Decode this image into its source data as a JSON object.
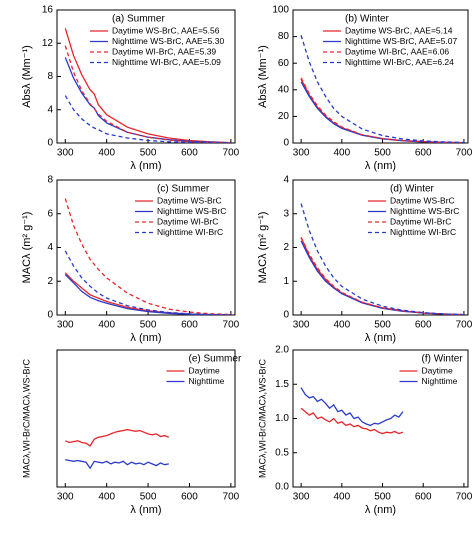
{
  "chart_data": [
    {
      "type": "line",
      "title": "(a) Summer",
      "xlabel": "λ (nm)",
      "ylabel": "Absλ (Mm⁻¹)",
      "x": [
        300,
        320,
        340,
        360,
        370,
        380,
        400,
        450,
        500,
        550,
        600,
        650,
        700
      ],
      "xlim": [
        280,
        710
      ],
      "xticks": [
        300,
        400,
        500,
        600,
        700
      ],
      "ylim": [
        0,
        16
      ],
      "yticks": [
        0,
        4,
        8,
        12,
        16
      ],
      "legend": "upper right",
      "series": [
        {
          "name": "Daytime WS-BrC, AAE=5.56",
          "color": "#e8262a",
          "style": "solid",
          "values": [
            13.8,
            10.5,
            8.2,
            6.4,
            5.9,
            4.6,
            3.4,
            1.9,
            1.1,
            0.6,
            0.3,
            0.15,
            0.05
          ]
        },
        {
          "name": "Nighttime WS-BrC, AAE=5.30",
          "color": "#2a3bcc",
          "style": "solid",
          "values": [
            10.3,
            7.8,
            6.0,
            4.6,
            4.2,
            3.3,
            2.4,
            1.3,
            0.7,
            0.4,
            0.2,
            0.1,
            0.03
          ]
        },
        {
          "name": "Daytime WI-BrC, AAE=5.39",
          "color": "#e8262a",
          "style": "dashed",
          "values": [
            11.7,
            8.5,
            6.3,
            4.7,
            4.1,
            3.5,
            2.6,
            1.3,
            0.7,
            0.35,
            0.15,
            0.05,
            0.02
          ]
        },
        {
          "name": "Nighttime WI-BrC, AAE=5.09",
          "color": "#2a3bcc",
          "style": "dashed",
          "values": [
            5.7,
            4.0,
            2.9,
            2.1,
            1.8,
            1.6,
            1.1,
            0.6,
            0.3,
            0.15,
            0.07,
            0.03,
            0.01
          ]
        }
      ]
    },
    {
      "type": "line",
      "title": "(b) Winter",
      "xlabel": "λ (nm)",
      "ylabel": "Absλ (Mm⁻¹)",
      "x": [
        300,
        320,
        340,
        360,
        380,
        400,
        450,
        500,
        550,
        600,
        650,
        700
      ],
      "xlim": [
        280,
        710
      ],
      "xticks": [
        300,
        400,
        500,
        600,
        700
      ],
      "ylim": [
        0,
        100
      ],
      "yticks": [
        0,
        20,
        40,
        60,
        80,
        100
      ],
      "legend": "upper right",
      "series": [
        {
          "name": "Daytime WS-BrC, AAE=5.14",
          "color": "#e8262a",
          "style": "solid",
          "values": [
            48,
            36,
            27,
            20,
            15,
            11.5,
            6,
            3.3,
            1.8,
            1,
            0.5,
            0.2
          ]
        },
        {
          "name": "Nighttime WS-BrC, AAE=5.07",
          "color": "#2a3bcc",
          "style": "solid",
          "values": [
            46,
            35,
            26,
            19.5,
            14.5,
            11,
            5.8,
            3.1,
            1.7,
            0.9,
            0.45,
            0.2
          ]
        },
        {
          "name": "Daytime WI-BrC, AAE=6.06",
          "color": "#e8262a",
          "style": "dashed",
          "values": [
            49,
            37,
            28,
            21,
            16,
            12,
            6.2,
            3.3,
            1.7,
            0.9,
            0.4,
            0.2
          ]
        },
        {
          "name": "Nighttime WI-BrC, AAE=6.24",
          "color": "#2a3bcc",
          "style": "dashed",
          "values": [
            81,
            61,
            46,
            35,
            26,
            20,
            10.5,
            5.6,
            3,
            1.6,
            0.8,
            0.4
          ]
        }
      ]
    },
    {
      "type": "line",
      "title": "(c) Summer",
      "xlabel": "λ (nm)",
      "ylabel": "MACλ (m² g⁻¹)",
      "x": [
        300,
        320,
        340,
        360,
        380,
        400,
        450,
        500,
        550,
        600,
        650,
        700
      ],
      "xlim": [
        280,
        710
      ],
      "xticks": [
        300,
        400,
        500,
        600,
        700
      ],
      "ylim": [
        0,
        8
      ],
      "yticks": [
        0,
        2,
        4,
        6,
        8
      ],
      "legend": "upper right",
      "series": [
        {
          "name": "Daytime WS-BrC",
          "color": "#e8262a",
          "style": "solid",
          "values": [
            2.5,
            2.0,
            1.6,
            1.2,
            1.0,
            0.8,
            0.45,
            0.25,
            0.13,
            0.06,
            0.03,
            0.01
          ]
        },
        {
          "name": "Nighttime WS-BrC",
          "color": "#2a3bcc",
          "style": "solid",
          "values": [
            2.4,
            1.9,
            1.4,
            1.05,
            0.85,
            0.7,
            0.38,
            0.2,
            0.1,
            0.05,
            0.02,
            0.01
          ]
        },
        {
          "name": "Daytime WI-BrC",
          "color": "#e8262a",
          "style": "dashed",
          "values": [
            6.9,
            5.3,
            4.2,
            3.3,
            2.7,
            2.2,
            1.3,
            0.7,
            0.35,
            0.17,
            0.07,
            0.03
          ]
        },
        {
          "name": "Nighttime WI-BrC",
          "color": "#2a3bcc",
          "style": "dashed",
          "values": [
            3.8,
            2.9,
            2.2,
            1.7,
            1.3,
            1.0,
            0.55,
            0.3,
            0.15,
            0.07,
            0.03,
            0.01
          ]
        }
      ]
    },
    {
      "type": "line",
      "title": "(d) Winter",
      "xlabel": "λ (nm)",
      "ylabel": "MACλ (m² g⁻¹)",
      "x": [
        300,
        320,
        340,
        360,
        380,
        400,
        450,
        500,
        550,
        600,
        650,
        700
      ],
      "xlim": [
        280,
        710
      ],
      "xticks": [
        300,
        400,
        500,
        600,
        700
      ],
      "ylim": [
        0,
        4
      ],
      "yticks": [
        0,
        1,
        2,
        3,
        4
      ],
      "legend": "upper right",
      "series": [
        {
          "name": "Daytime WS-BrC",
          "color": "#e8262a",
          "style": "solid",
          "values": [
            2.3,
            1.75,
            1.35,
            1.05,
            0.82,
            0.65,
            0.37,
            0.21,
            0.12,
            0.06,
            0.03,
            0.01
          ]
        },
        {
          "name": "Nighttime WS-BrC",
          "color": "#2a3bcc",
          "style": "solid",
          "values": [
            2.2,
            1.7,
            1.3,
            1.0,
            0.8,
            0.63,
            0.36,
            0.2,
            0.11,
            0.06,
            0.03,
            0.01
          ]
        },
        {
          "name": "Daytime WI-BrC",
          "color": "#e8262a",
          "style": "dashed",
          "values": [
            2.3,
            1.8,
            1.4,
            1.08,
            0.85,
            0.67,
            0.38,
            0.21,
            0.12,
            0.06,
            0.03,
            0.01
          ]
        },
        {
          "name": "Nighttime WI-BrC",
          "color": "#2a3bcc",
          "style": "dashed",
          "values": [
            3.3,
            2.5,
            1.9,
            1.45,
            1.1,
            0.85,
            0.47,
            0.26,
            0.14,
            0.07,
            0.03,
            0.01
          ]
        }
      ]
    },
    {
      "type": "line",
      "title": "(e) Summer",
      "xlabel": "λ (nm)",
      "ylabel": "MACλ,WI-BrC/MACλ,WS-BrC",
      "x": [
        300,
        310,
        320,
        330,
        340,
        350,
        360,
        370,
        380,
        390,
        400,
        410,
        420,
        430,
        440,
        450,
        460,
        470,
        480,
        490,
        500,
        510,
        520,
        530,
        540,
        550
      ],
      "xlim": [
        280,
        710
      ],
      "xticks": [
        300,
        400,
        500,
        600,
        700
      ],
      "ylim": [
        0,
        8
      ],
      "legend": "upper right",
      "series": [
        {
          "name": "Daytime",
          "color": "#e8262a",
          "style": "solid",
          "values": [
            2.7,
            2.6,
            2.65,
            2.7,
            2.6,
            2.55,
            2.4,
            2.8,
            2.9,
            2.95,
            3.0,
            3.1,
            3.2,
            3.25,
            3.3,
            3.35,
            3.3,
            3.25,
            3.3,
            3.2,
            3.1,
            3.05,
            3.1,
            2.95,
            3.0,
            2.9
          ]
        },
        {
          "name": "Nighttime",
          "color": "#2a3bcc",
          "style": "solid",
          "values": [
            1.6,
            1.55,
            1.5,
            1.55,
            1.5,
            1.45,
            1.1,
            1.5,
            1.45,
            1.4,
            1.5,
            1.35,
            1.45,
            1.4,
            1.5,
            1.3,
            1.45,
            1.35,
            1.4,
            1.3,
            1.45,
            1.35,
            1.25,
            1.4,
            1.3,
            1.35
          ]
        }
      ]
    },
    {
      "type": "line",
      "title": "(f) Winter",
      "xlabel": "λ (nm)",
      "ylabel": "MACλ,WI-BrC/MACλ,WS-BrC",
      "x": [
        300,
        310,
        320,
        330,
        340,
        350,
        360,
        370,
        380,
        390,
        400,
        410,
        420,
        430,
        440,
        450,
        460,
        470,
        480,
        490,
        500,
        510,
        520,
        530,
        540,
        550
      ],
      "xlim": [
        280,
        710
      ],
      "xticks": [
        300,
        400,
        500,
        600,
        700
      ],
      "ylim": [
        0,
        2
      ],
      "yticks": [
        {
          "value": 0,
          "label": "0.0"
        },
        0.5,
        {
          "value": 1,
          "label": "1.0"
        },
        1.5,
        {
          "value": 2,
          "label": "2.0"
        }
      ],
      "legend": "upper right",
      "series": [
        {
          "name": "Daytime",
          "color": "#e8262a",
          "style": "solid",
          "values": [
            1.15,
            1.1,
            1.05,
            1.08,
            1.0,
            1.02,
            0.98,
            0.95,
            1.0,
            0.93,
            0.95,
            0.9,
            0.92,
            0.88,
            0.9,
            0.86,
            0.85,
            0.82,
            0.84,
            0.8,
            0.78,
            0.8,
            0.79,
            0.81,
            0.78,
            0.8
          ]
        },
        {
          "name": "Nighttime",
          "color": "#2a3bcc",
          "style": "solid",
          "values": [
            1.45,
            1.35,
            1.3,
            1.32,
            1.25,
            1.28,
            1.22,
            1.15,
            1.2,
            1.1,
            1.12,
            1.05,
            1.08,
            1.0,
            1.02,
            0.95,
            0.92,
            0.9,
            0.93,
            0.92,
            0.95,
            0.98,
            1.0,
            1.05,
            1.02,
            1.1
          ]
        }
      ]
    }
  ]
}
